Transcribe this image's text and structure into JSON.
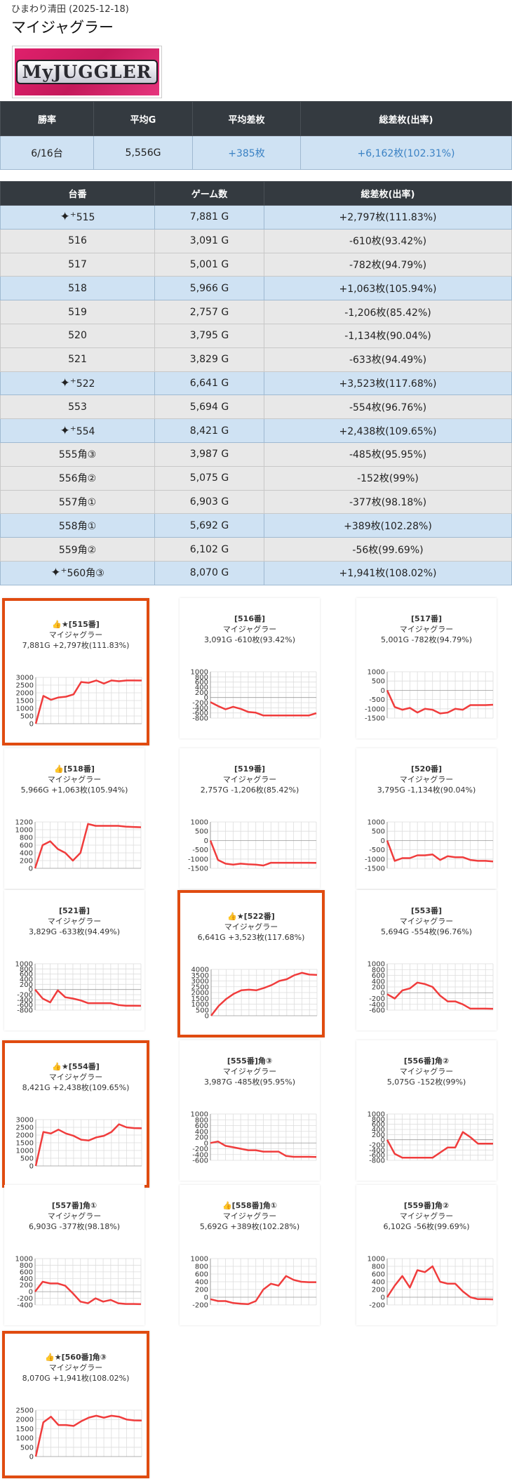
{
  "header": {
    "hall": "ひまわり清田 (2025-12-18)",
    "title": "マイジャグラー",
    "logo_text": "MyJUGGLER"
  },
  "summary": {
    "headers": [
      "勝率",
      "平均G",
      "平均差枚",
      "総差枚(出率)"
    ],
    "values": [
      "6/16台",
      "5,556G",
      "+385枚",
      "+6,162枚(102.31%)"
    ]
  },
  "table": {
    "headers": [
      "台番",
      "ゲーム数",
      "総差枚(出率)"
    ],
    "rows": [
      {
        "no": "515",
        "spark": true,
        "games": "7,881 G",
        "diff": "+2,797枚(111.83%)",
        "plus": true
      },
      {
        "no": "516",
        "spark": false,
        "games": "3,091 G",
        "diff": "-610枚(93.42%)",
        "plus": false
      },
      {
        "no": "517",
        "spark": false,
        "games": "5,001 G",
        "diff": "-782枚(94.79%)",
        "plus": false
      },
      {
        "no": "518",
        "spark": false,
        "games": "5,966 G",
        "diff": "+1,063枚(105.94%)",
        "plus": true
      },
      {
        "no": "519",
        "spark": false,
        "games": "2,757 G",
        "diff": "-1,206枚(85.42%)",
        "plus": false
      },
      {
        "no": "520",
        "spark": false,
        "games": "3,795 G",
        "diff": "-1,134枚(90.04%)",
        "plus": false
      },
      {
        "no": "521",
        "spark": false,
        "games": "3,829 G",
        "diff": "-633枚(94.49%)",
        "plus": false
      },
      {
        "no": "522",
        "spark": true,
        "games": "6,641 G",
        "diff": "+3,523枚(117.68%)",
        "plus": true
      },
      {
        "no": "553",
        "spark": false,
        "games": "5,694 G",
        "diff": "-554枚(96.76%)",
        "plus": false
      },
      {
        "no": "554",
        "spark": true,
        "games": "8,421 G",
        "diff": "+2,438枚(109.65%)",
        "plus": true
      },
      {
        "no": "555角③",
        "spark": false,
        "games": "3,987 G",
        "diff": "-485枚(95.95%)",
        "plus": false
      },
      {
        "no": "556角②",
        "spark": false,
        "games": "5,075 G",
        "diff": "-152枚(99%)",
        "plus": false
      },
      {
        "no": "557角①",
        "spark": false,
        "games": "6,903 G",
        "diff": "-377枚(98.18%)",
        "plus": false
      },
      {
        "no": "558角①",
        "spark": false,
        "games": "5,692 G",
        "diff": "+389枚(102.28%)",
        "plus": true
      },
      {
        "no": "559角②",
        "spark": false,
        "games": "6,102 G",
        "diff": "-56枚(99.69%)",
        "plus": false
      },
      {
        "no": "560角③",
        "spark": true,
        "games": "8,070 G",
        "diff": "+1,941枚(108.02%)",
        "plus": true
      }
    ]
  },
  "chart_data": [
    {
      "type": "line",
      "title": "👍★[515番]",
      "subtitle": "マイジャグラー",
      "stats": "7,881G +2,797枚(111.83%)",
      "highlight": true,
      "ticks": [
        3000,
        2500,
        2000,
        1500,
        1000,
        500,
        0
      ],
      "ylim": [
        0,
        3000
      ],
      "values": [
        0,
        1800,
        1550,
        1700,
        1750,
        1900,
        2700,
        2650,
        2800,
        2600,
        2800,
        2750,
        2800,
        2800,
        2797
      ]
    },
    {
      "type": "line",
      "title": "[516番]",
      "subtitle": "マイジャグラー",
      "stats": "3,091G -610枚(93.42%)",
      "highlight": false,
      "ticks": [
        1000,
        800,
        600,
        400,
        200,
        0,
        -200,
        -400,
        -600,
        -800
      ],
      "ylim": [
        -800,
        1000
      ],
      "values": [
        -180,
        -330,
        -460,
        -360,
        -440,
        -560,
        -590,
        -700,
        -700,
        -700,
        -700,
        -700,
        -700,
        -700,
        -610
      ]
    },
    {
      "type": "line",
      "title": "[517番]",
      "subtitle": "マイジャグラー",
      "stats": "5,001G -782枚(94.79%)",
      "highlight": false,
      "ticks": [
        1000,
        500,
        0,
        -500,
        -1000,
        -1500
      ],
      "ylim": [
        -1500,
        1000
      ],
      "values": [
        0,
        -900,
        -1050,
        -950,
        -1200,
        -1000,
        -1050,
        -1250,
        -1200,
        -1000,
        -1050,
        -800,
        -800,
        -800,
        -782
      ]
    },
    {
      "type": "line",
      "title": "👍[518番]",
      "subtitle": "マイジャグラー",
      "stats": "5,966G +1,063枚(105.94%)",
      "highlight": false,
      "ticks": [
        1200,
        1000,
        800,
        600,
        400,
        200,
        0
      ],
      "ylim": [
        0,
        1200
      ],
      "values": [
        0,
        600,
        700,
        500,
        400,
        200,
        400,
        1150,
        1100,
        1100,
        1100,
        1100,
        1080,
        1070,
        1063
      ]
    },
    {
      "type": "line",
      "title": "[519番]",
      "subtitle": "マイジャグラー",
      "stats": "2,757G -1,206枚(85.42%)",
      "highlight": false,
      "ticks": [
        1000,
        500,
        0,
        -500,
        -1000,
        -1500
      ],
      "ylim": [
        -1500,
        1000
      ],
      "values": [
        0,
        -1050,
        -1250,
        -1300,
        -1250,
        -1280,
        -1300,
        -1350,
        -1200,
        -1200,
        -1200,
        -1200,
        -1200,
        -1200,
        -1206
      ]
    },
    {
      "type": "line",
      "title": "[520番]",
      "subtitle": "マイジャグラー",
      "stats": "3,795G -1,134枚(90.04%)",
      "highlight": false,
      "ticks": [
        1000,
        500,
        0,
        -500,
        -1000,
        -1500
      ],
      "ylim": [
        -1500,
        1000
      ],
      "values": [
        0,
        -1100,
        -950,
        -950,
        -800,
        -800,
        -750,
        -1050,
        -850,
        -900,
        -900,
        -1050,
        -1100,
        -1100,
        -1134
      ]
    },
    {
      "type": "line",
      "title": "[521番]",
      "subtitle": "マイジャグラー",
      "stats": "3,829G -633枚(94.49%)",
      "highlight": false,
      "ticks": [
        1000,
        800,
        600,
        400,
        200,
        0,
        -200,
        -400,
        -600,
        -800
      ],
      "ylim": [
        -800,
        1000
      ],
      "values": [
        0,
        -350,
        -500,
        -30,
        -300,
        -350,
        -420,
        -530,
        -530,
        -530,
        -530,
        -600,
        -630,
        -630,
        -633
      ]
    },
    {
      "type": "line",
      "title": "👍★[522番]",
      "subtitle": "マイジャグラー",
      "stats": "6,641G +3,523枚(117.68%)",
      "highlight": true,
      "ticks": [
        4000,
        3500,
        3000,
        2500,
        2000,
        1500,
        1000,
        500,
        0
      ],
      "ylim": [
        0,
        4000
      ],
      "values": [
        0,
        850,
        1450,
        1900,
        2200,
        2250,
        2200,
        2400,
        2650,
        3000,
        3150,
        3500,
        3700,
        3550,
        3523
      ]
    },
    {
      "type": "line",
      "title": "[553番]",
      "subtitle": "マイジャグラー",
      "stats": "5,694G -554枚(96.76%)",
      "highlight": false,
      "ticks": [
        1000,
        800,
        600,
        400,
        200,
        0,
        -200,
        -400,
        -600
      ],
      "ylim": [
        -600,
        1000
      ],
      "values": [
        -50,
        -200,
        80,
        150,
        350,
        300,
        200,
        -100,
        -300,
        -300,
        -400,
        -550,
        -550,
        -550,
        -554
      ]
    },
    {
      "type": "line",
      "title": "👍★[554番]",
      "subtitle": "マイジャグラー",
      "stats": "8,421G +2,438枚(109.65%)",
      "highlight": true,
      "ticks": [
        3000,
        2500,
        2000,
        1500,
        1000,
        500,
        0
      ],
      "ylim": [
        0,
        3000
      ],
      "values": [
        0,
        2200,
        2100,
        2350,
        2100,
        1950,
        1700,
        1650,
        1850,
        1950,
        2200,
        2700,
        2500,
        2450,
        2438
      ]
    },
    {
      "type": "line",
      "title": "[555番]角③",
      "subtitle": "マイジャグラー",
      "stats": "3,987G -485枚(95.95%)",
      "highlight": false,
      "ticks": [
        1000,
        800,
        600,
        400,
        200,
        0,
        -200,
        -400,
        -600
      ],
      "ylim": [
        -600,
        1000
      ],
      "values": [
        0,
        50,
        -100,
        -150,
        -200,
        -250,
        -250,
        -300,
        -300,
        -300,
        -450,
        -480,
        -480,
        -480,
        -485
      ]
    },
    {
      "type": "line",
      "title": "[556番]角②",
      "subtitle": "マイジャグラー",
      "stats": "5,075G -152枚(99%)",
      "highlight": false,
      "ticks": [
        1000,
        800,
        600,
        400,
        200,
        0,
        -200,
        -400,
        -600,
        -800
      ],
      "ylim": [
        -800,
        1000
      ],
      "values": [
        0,
        -550,
        -700,
        -700,
        -700,
        -700,
        -700,
        -500,
        -300,
        -300,
        300,
        100,
        -150,
        -150,
        -152
      ]
    },
    {
      "type": "line",
      "title": "[557番]角①",
      "subtitle": "マイジャグラー",
      "stats": "6,903G -377枚(98.18%)",
      "highlight": false,
      "ticks": [
        1000,
        800,
        600,
        400,
        200,
        0,
        -200,
        -400
      ],
      "ylim": [
        -400,
        1000
      ],
      "values": [
        0,
        300,
        250,
        250,
        180,
        -50,
        -300,
        -350,
        -200,
        -300,
        -250,
        -350,
        -370,
        -370,
        -377
      ]
    },
    {
      "type": "line",
      "title": "👍[558番]角①",
      "subtitle": "マイジャグラー",
      "stats": "5,692G +389枚(102.28%)",
      "highlight": false,
      "ticks": [
        1000,
        800,
        600,
        400,
        200,
        0,
        -200
      ],
      "ylim": [
        -200,
        1000
      ],
      "values": [
        -50,
        -100,
        -100,
        -150,
        -170,
        -180,
        -100,
        200,
        350,
        300,
        550,
        450,
        400,
        390,
        389
      ]
    },
    {
      "type": "line",
      "title": "[559番]角②",
      "subtitle": "マイジャグラー",
      "stats": "6,102G -56枚(99.69%)",
      "highlight": false,
      "ticks": [
        1000,
        800,
        600,
        400,
        200,
        0,
        -200
      ],
      "ylim": [
        -200,
        1000
      ],
      "values": [
        0,
        300,
        550,
        250,
        700,
        650,
        800,
        400,
        350,
        350,
        150,
        0,
        -50,
        -50,
        -56
      ]
    },
    {
      "type": "line",
      "title": "👍★[560番]角③",
      "subtitle": "マイジャグラー",
      "stats": "8,070G +1,941枚(108.02%)",
      "highlight": true,
      "ticks": [
        2500,
        2000,
        1500,
        1000,
        500,
        0
      ],
      "ylim": [
        0,
        2500
      ],
      "values": [
        0,
        1850,
        2150,
        1700,
        1700,
        1650,
        1900,
        2100,
        2200,
        2100,
        2200,
        2150,
        2000,
        1950,
        1941
      ]
    }
  ]
}
